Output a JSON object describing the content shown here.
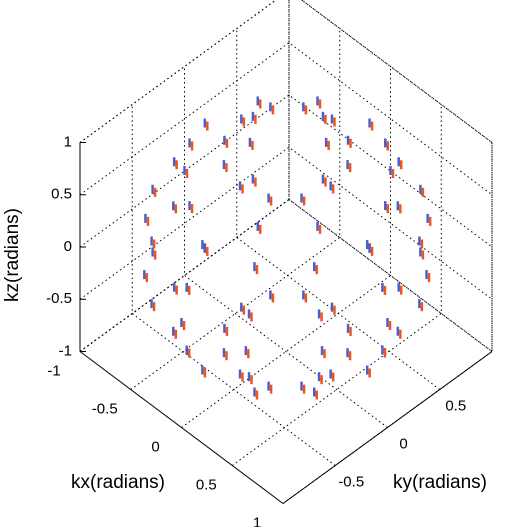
{
  "chart_data": {
    "type": "quiver3",
    "xlabel": "kx(radians)",
    "ylabel": "ky(radians)",
    "zlabel": "kz(radians)",
    "xlim": [
      -1,
      1
    ],
    "ylim": [
      -1,
      1
    ],
    "zlim": [
      -1,
      1
    ],
    "xticks": [
      -1,
      -0.5,
      0,
      0.5,
      1
    ],
    "yticks": [
      -0.5,
      0,
      0.5
    ],
    "zticks": [
      -1,
      -0.5,
      0,
      0.5,
      1
    ],
    "grid": true,
    "colors": [
      "#4a5fc8",
      "#f0541e"
    ],
    "points": {
      "x": [
        0.44,
        0.38,
        0.22,
        0,
        -0.22,
        -0.38,
        -0.44,
        -0.38,
        -0.22,
        0,
        0.22,
        0.38,
        0.8,
        0.69,
        0.4,
        0,
        -0.4,
        -0.69,
        -0.8,
        -0.69,
        -0.4,
        0,
        0.4,
        0.69,
        0.95,
        0.82,
        0.48,
        0,
        -0.48,
        -0.82,
        -0.95,
        -0.82,
        -0.48,
        0,
        0.48,
        0.82,
        1,
        0.87,
        0.5,
        0,
        -0.5,
        -0.87,
        -1,
        -0.87,
        -0.5,
        0,
        0.5,
        0.87,
        0.95,
        0.82,
        0.48,
        0,
        -0.48,
        -0.82,
        -0.95,
        -0.82,
        -0.48,
        0,
        0.48,
        0.82,
        0.8,
        0.69,
        0.4,
        0,
        -0.4,
        -0.69,
        -0.8,
        -0.69,
        -0.4,
        0,
        0.4,
        0.69,
        0.44,
        0.38,
        0.22,
        0,
        -0.22,
        -0.38,
        -0.44,
        -0.38,
        -0.22,
        0,
        0.22,
        0.38
      ],
      "y": [
        0,
        0.22,
        0.38,
        0.44,
        0.38,
        0.22,
        0,
        -0.22,
        -0.38,
        -0.44,
        -0.38,
        -0.22,
        0,
        0.4,
        0.69,
        0.8,
        0.69,
        0.4,
        0,
        -0.4,
        -0.69,
        -0.8,
        -0.69,
        -0.4,
        0,
        0.48,
        0.82,
        0.95,
        0.82,
        0.48,
        0,
        -0.48,
        -0.82,
        -0.95,
        -0.82,
        -0.48,
        0,
        0.5,
        0.87,
        1,
        0.87,
        0.5,
        0,
        -0.5,
        -0.87,
        -1,
        -0.87,
        -0.5,
        0,
        0.48,
        0.82,
        0.95,
        0.82,
        0.48,
        0,
        -0.48,
        -0.82,
        -0.95,
        -0.82,
        -0.48,
        0,
        0.4,
        0.69,
        0.8,
        0.69,
        0.4,
        0,
        -0.4,
        -0.69,
        -0.8,
        -0.69,
        -0.4,
        0,
        0.22,
        0.38,
        0.44,
        0.38,
        0.22,
        0,
        -0.22,
        -0.38,
        -0.44,
        -0.38,
        -0.22
      ],
      "z": [
        0.9,
        0.9,
        0.9,
        0.9,
        0.9,
        0.9,
        0.9,
        0.9,
        0.9,
        0.9,
        0.9,
        0.9,
        0.6,
        0.6,
        0.6,
        0.6,
        0.6,
        0.6,
        0.6,
        0.6,
        0.6,
        0.6,
        0.6,
        0.6,
        0.3,
        0.3,
        0.3,
        0.3,
        0.3,
        0.3,
        0.3,
        0.3,
        0.3,
        0.3,
        0.3,
        0.3,
        0,
        0,
        0,
        0,
        0,
        0,
        0,
        0,
        0,
        0,
        0,
        0,
        -0.3,
        -0.3,
        -0.3,
        -0.3,
        -0.3,
        -0.3,
        -0.3,
        -0.3,
        -0.3,
        -0.3,
        -0.3,
        -0.3,
        -0.6,
        -0.6,
        -0.6,
        -0.6,
        -0.6,
        -0.6,
        -0.6,
        -0.6,
        -0.6,
        -0.6,
        -0.6,
        -0.6,
        -0.9,
        -0.9,
        -0.9,
        -0.9,
        -0.9,
        -0.9,
        -0.9,
        -0.9,
        -0.9,
        -0.9,
        -0.9,
        -0.9
      ]
    }
  }
}
